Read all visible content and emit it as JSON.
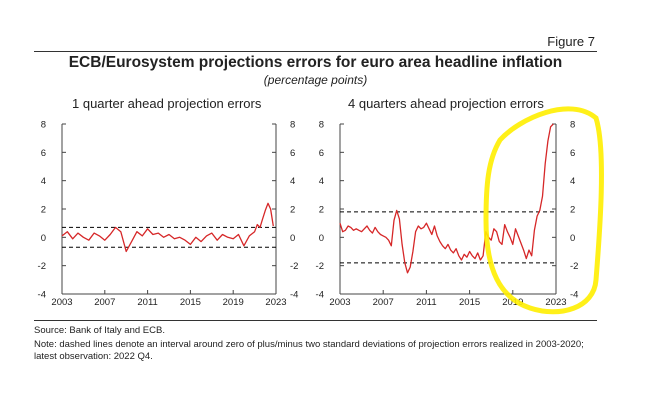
{
  "figure_label": "Figure 7",
  "title": "ECB/Eurosystem projections errors for euro area headline inflation",
  "subtitle": "(percentage points)",
  "source": "Source: Bank of Italy and ECB.",
  "note": "Note: dashed lines denote an interval around zero of plus/minus two standard deviations of projection errors realized in 2003-2020; latest observation: 2022 Q4.",
  "colors": {
    "series": "#d62728",
    "band": "#000000",
    "highlight": "#ffee00"
  },
  "chart_data": [
    {
      "type": "line",
      "title": "1 quarter ahead projection errors",
      "xlim": [
        2003,
        2023
      ],
      "ylim": [
        -4,
        8
      ],
      "x_ticks": [
        2003,
        2007,
        2011,
        2015,
        2019,
        2023
      ],
      "y_ticks": [
        -4,
        -2,
        0,
        2,
        4,
        6,
        8
      ],
      "band": [
        -0.7,
        0.7
      ],
      "series": [
        {
          "x": [
            2003.0,
            2003.5,
            2004.0,
            2004.5,
            2005.0,
            2005.5,
            2006.0,
            2006.5,
            2007.0,
            2007.5,
            2008.0,
            2008.5,
            2009.0,
            2009.5,
            2010.0,
            2010.5,
            2011.0,
            2011.5,
            2012.0,
            2012.5,
            2013.0,
            2013.5,
            2014.0,
            2014.5,
            2015.0,
            2015.5,
            2016.0,
            2016.5,
            2017.0,
            2017.5,
            2018.0,
            2018.5,
            2019.0,
            2019.5,
            2020.0,
            2020.5,
            2021.0,
            2021.25,
            2021.5,
            2021.75,
            2022.0,
            2022.25,
            2022.5,
            2022.75
          ],
          "y": [
            0.1,
            0.4,
            -0.1,
            0.3,
            0.0,
            -0.2,
            0.3,
            0.1,
            -0.2,
            0.2,
            0.7,
            0.4,
            -1.0,
            -0.3,
            0.4,
            0.1,
            0.6,
            0.2,
            0.3,
            0.0,
            0.2,
            -0.1,
            0.0,
            -0.2,
            -0.5,
            0.0,
            -0.3,
            0.1,
            0.3,
            -0.2,
            0.2,
            0.0,
            -0.1,
            0.2,
            -0.6,
            0.1,
            0.4,
            0.9,
            0.7,
            1.3,
            1.9,
            2.4,
            2.0,
            0.8
          ]
        }
      ]
    },
    {
      "type": "line",
      "title": "4 quarters ahead projection errors",
      "xlim": [
        2003,
        2023
      ],
      "ylim": [
        -4,
        8
      ],
      "x_ticks": [
        2003,
        2007,
        2011,
        2015,
        2019,
        2023
      ],
      "y_ticks": [
        -4,
        -2,
        0,
        2,
        4,
        6,
        8
      ],
      "band": [
        -1.8,
        1.8
      ],
      "series": [
        {
          "x": [
            2003.0,
            2003.25,
            2003.5,
            2003.75,
            2004.0,
            2004.25,
            2004.5,
            2004.75,
            2005.0,
            2005.25,
            2005.5,
            2005.75,
            2006.0,
            2006.25,
            2006.5,
            2006.75,
            2007.0,
            2007.25,
            2007.5,
            2007.75,
            2008.0,
            2008.25,
            2008.5,
            2008.75,
            2009.0,
            2009.25,
            2009.5,
            2009.75,
            2010.0,
            2010.25,
            2010.5,
            2010.75,
            2011.0,
            2011.25,
            2011.5,
            2011.75,
            2012.0,
            2012.25,
            2012.5,
            2012.75,
            2013.0,
            2013.25,
            2013.5,
            2013.75,
            2014.0,
            2014.25,
            2014.5,
            2014.75,
            2015.0,
            2015.25,
            2015.5,
            2015.75,
            2016.0,
            2016.25,
            2016.5,
            2016.75,
            2017.0,
            2017.25,
            2017.5,
            2017.75,
            2018.0,
            2018.25,
            2018.5,
            2018.75,
            2019.0,
            2019.25,
            2019.5,
            2019.75,
            2020.0,
            2020.25,
            2020.5,
            2020.75,
            2021.0,
            2021.25,
            2021.5,
            2021.75,
            2022.0,
            2022.25,
            2022.5,
            2022.75
          ],
          "y": [
            1.0,
            0.4,
            0.5,
            0.8,
            0.7,
            0.5,
            0.6,
            0.5,
            0.4,
            0.6,
            0.8,
            0.5,
            0.3,
            0.7,
            0.4,
            0.2,
            0.1,
            0.0,
            -0.2,
            -0.6,
            1.2,
            1.9,
            1.3,
            -0.5,
            -1.8,
            -2.5,
            -2.1,
            -1.0,
            0.4,
            0.8,
            0.6,
            0.7,
            1.0,
            0.6,
            0.2,
            0.8,
            0.1,
            -0.3,
            -0.6,
            -0.8,
            -0.5,
            -0.9,
            -1.1,
            -0.8,
            -1.3,
            -1.6,
            -1.2,
            -1.4,
            -1.0,
            -1.3,
            -1.5,
            -1.1,
            -1.6,
            -1.3,
            0.4,
            0.0,
            -0.2,
            0.6,
            0.4,
            -0.3,
            -0.5,
            0.9,
            0.4,
            0.0,
            -0.5,
            0.6,
            0.1,
            -0.4,
            -0.9,
            -1.5,
            -0.9,
            -1.3,
            0.5,
            1.5,
            1.9,
            2.9,
            5.2,
            6.8,
            7.8,
            8.0
          ]
        }
      ]
    }
  ]
}
